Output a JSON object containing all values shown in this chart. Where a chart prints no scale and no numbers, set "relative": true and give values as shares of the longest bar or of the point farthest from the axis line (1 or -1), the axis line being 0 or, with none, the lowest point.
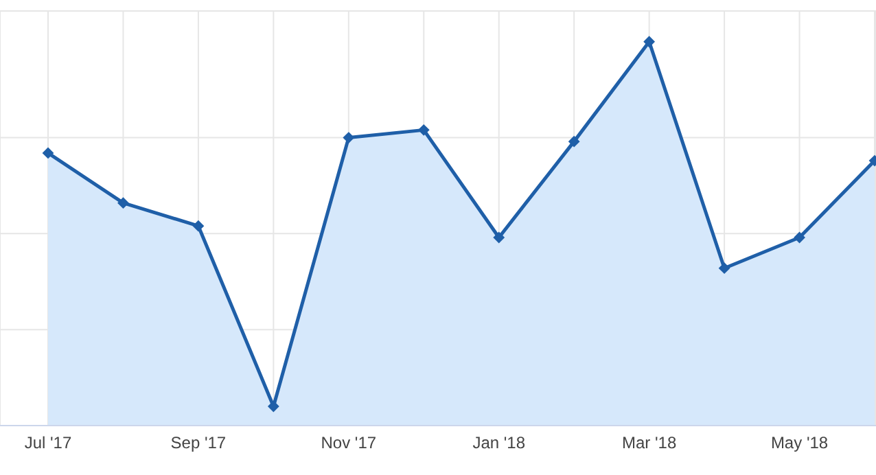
{
  "chart_data": {
    "type": "area",
    "relative": true,
    "categories": [
      "Jul '17",
      null,
      "Sep '17",
      null,
      "Nov '17",
      null,
      "Jan '18",
      null,
      "Mar '18",
      null,
      "May '18",
      null
    ],
    "series": [
      {
        "color": "#1f5fa8",
        "values": [
          0.71,
          0.58,
          0.52,
          0.05,
          0.75,
          0.77,
          0.49,
          0.74,
          1,
          0.41,
          0.49,
          0.69
        ]
      }
    ],
    "grid": true,
    "marker": "diamond"
  }
}
